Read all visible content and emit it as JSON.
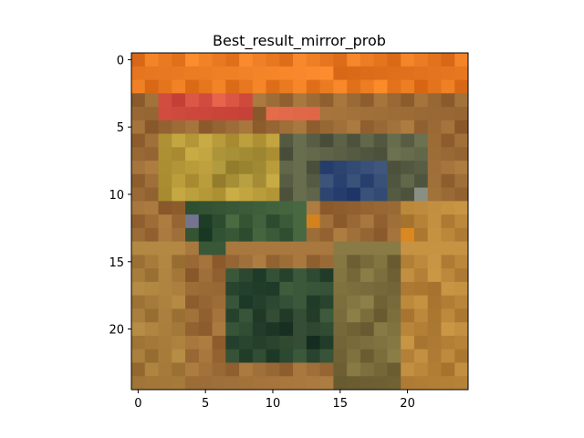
{
  "chart_data": {
    "type": "heatmap",
    "title": "Best_result_mirror_prob",
    "xlabel": "",
    "ylabel": "",
    "grid": false,
    "colorbar": false,
    "shape": [
      25,
      25
    ],
    "xlim": [
      -0.5,
      24.5
    ],
    "ylim": [
      24.5,
      -0.5
    ],
    "x_ticks": [
      0,
      5,
      10,
      15,
      20
    ],
    "y_ticks": [
      0,
      5,
      10,
      15,
      20
    ],
    "colors": {
      "orange_band": "#e67a2e",
      "red_band": "#d65242",
      "gold": "#b59a3a",
      "dark_green": "#2f4a33",
      "navy": "#2a3f6a",
      "olive": "#7a7a3e",
      "brown": "#8a5a30"
    },
    "color_stops": [
      {
        "color": "#ea7a22",
        "rows": [
          0,
          1
        ],
        "cols": [
          0,
          24
        ]
      },
      {
        "color": "#e8781f",
        "rows": [
          2,
          2
        ],
        "cols": [
          0,
          24
        ]
      },
      {
        "color": "#d65242",
        "rows": [
          3,
          4
        ],
        "cols": [
          2,
          8
        ]
      },
      {
        "color": "#d25a40",
        "rows": [
          4,
          4
        ],
        "cols": [
          10,
          13
        ]
      },
      {
        "color": "#b89b3a",
        "rows": [
          6,
          10
        ],
        "cols": [
          2,
          10
        ]
      },
      {
        "color": "#a58e36",
        "rows": [
          7,
          9
        ],
        "cols": [
          6,
          9
        ]
      },
      {
        "color": "#5a5f45",
        "rows": [
          6,
          10
        ],
        "cols": [
          11,
          21
        ]
      },
      {
        "color": "#2f4772",
        "rows": [
          8,
          10
        ],
        "cols": [
          14,
          18
        ]
      },
      {
        "color": "#3d6a78",
        "rows": [
          11,
          11
        ],
        "cols": [
          7,
          9
        ]
      },
      {
        "color": "#3a5a38",
        "rows": [
          11,
          13
        ],
        "cols": [
          4,
          12
        ]
      },
      {
        "color": "#2a4a2f",
        "rows": [
          12,
          14
        ],
        "cols": [
          5,
          6
        ]
      },
      {
        "color": "#2e4a32",
        "rows": [
          16,
          22
        ],
        "cols": [
          7,
          14
        ]
      },
      {
        "color": "#263f2b",
        "rows": [
          19,
          21
        ],
        "cols": [
          9,
          13
        ]
      },
      {
        "color": "#7b6d3c",
        "rows": [
          14,
          24
        ],
        "cols": [
          15,
          20
        ]
      },
      {
        "color": "#a57a3a",
        "rows": [
          14,
          24
        ],
        "cols": [
          0,
          3
        ]
      },
      {
        "color": "#b8853a",
        "rows": [
          11,
          24
        ],
        "cols": [
          20,
          24
        ]
      },
      {
        "color": "#dc8a22",
        "rows": [
          12,
          12
        ],
        "cols": [
          13,
          13
        ]
      },
      {
        "color": "#dc8a22",
        "rows": [
          13,
          13
        ],
        "cols": [
          20,
          20
        ]
      },
      {
        "color": "#6a6a8a",
        "rows": [
          12,
          12
        ],
        "cols": [
          4,
          4
        ]
      },
      {
        "color": "#7a7f7a",
        "rows": [
          10,
          10
        ],
        "cols": [
          21,
          21
        ]
      }
    ],
    "background_color": "#9a6a36"
  }
}
